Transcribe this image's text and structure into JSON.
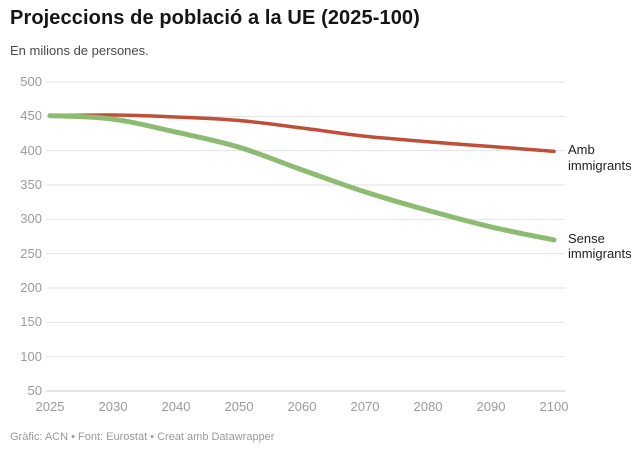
{
  "header": {
    "title": "Projeccions de població a la UE (2025-100)",
    "subtitle": "En milions de persones."
  },
  "footer": {
    "credit": "Gràfic: ACN • Font: Eurostat • Creat amb Datawrapper"
  },
  "chart_data": {
    "type": "line",
    "title": "Projeccions de població a la UE (2025-100)",
    "subtitle": "En milions de persones.",
    "x": [
      "2025",
      "2030",
      "2040",
      "2050",
      "2060",
      "2070",
      "2080",
      "2090",
      "2100"
    ],
    "x_spacing": "equal-categorical",
    "series": [
      {
        "name": "Amb immigrants",
        "color": "#c04f3a",
        "stroke_width": 3.5,
        "values": [
          451,
          452,
          449,
          444,
          433,
          421,
          413,
          406,
          399
        ]
      },
      {
        "name": "Sense immigrants",
        "color": "#8cbc72",
        "stroke_width": 5,
        "values": [
          451,
          446,
          427,
          405,
          372,
          340,
          313,
          289,
          270
        ]
      }
    ],
    "y_ticks": [
      50,
      100,
      150,
      200,
      250,
      300,
      350,
      400,
      450,
      500
    ],
    "ylim": [
      50,
      500
    ],
    "grid": "horizontal-only",
    "gridline_color": "#e2e2e2",
    "baseline_color": "#c9c9c9",
    "tick_label_color": "#9b9b9b",
    "legend_position": "right-of-line-end",
    "interpolation": "curved"
  }
}
